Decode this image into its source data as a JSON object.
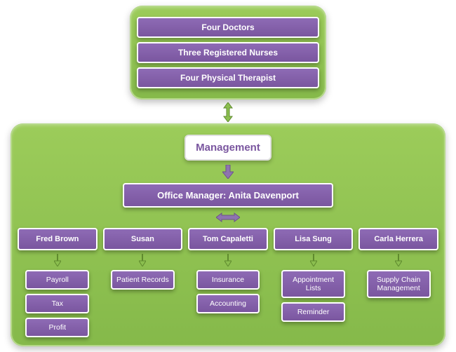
{
  "colors": {
    "panel_bg_top": "#9ccc5a",
    "panel_bg_bottom": "#85b94a",
    "purple_top": "#8e6bb5",
    "purple_bottom": "#7a569f",
    "purple_text": "#7a569f",
    "white": "#ffffff",
    "arrow_fill": "#8e74b0",
    "arrow_stroke": "#6b5486"
  },
  "top_panel": {
    "rows": [
      "Four Doctors",
      "Three Registered Nurses",
      "Four Physical Therapist"
    ]
  },
  "management_label": "Management",
  "office_manager_label": "Office Manager: Anita Davenport",
  "people": [
    {
      "name": "Fred Brown",
      "tasks": [
        "Payroll",
        "Tax",
        "Profit"
      ]
    },
    {
      "name": "Susan",
      "tasks": [
        "Patient Records"
      ]
    },
    {
      "name": "Tom Capaletti",
      "tasks": [
        "Insurance",
        "Accounting"
      ]
    },
    {
      "name": "Lisa Sung",
      "tasks": [
        "Appointment Lists",
        "Reminder"
      ]
    },
    {
      "name": "Carla Herrera",
      "tasks": [
        "Supply Chain Management"
      ]
    }
  ],
  "fontsizes": {
    "top_rows": 12,
    "management": 15,
    "office_manager": 13,
    "name": 11,
    "task": 10.5
  }
}
